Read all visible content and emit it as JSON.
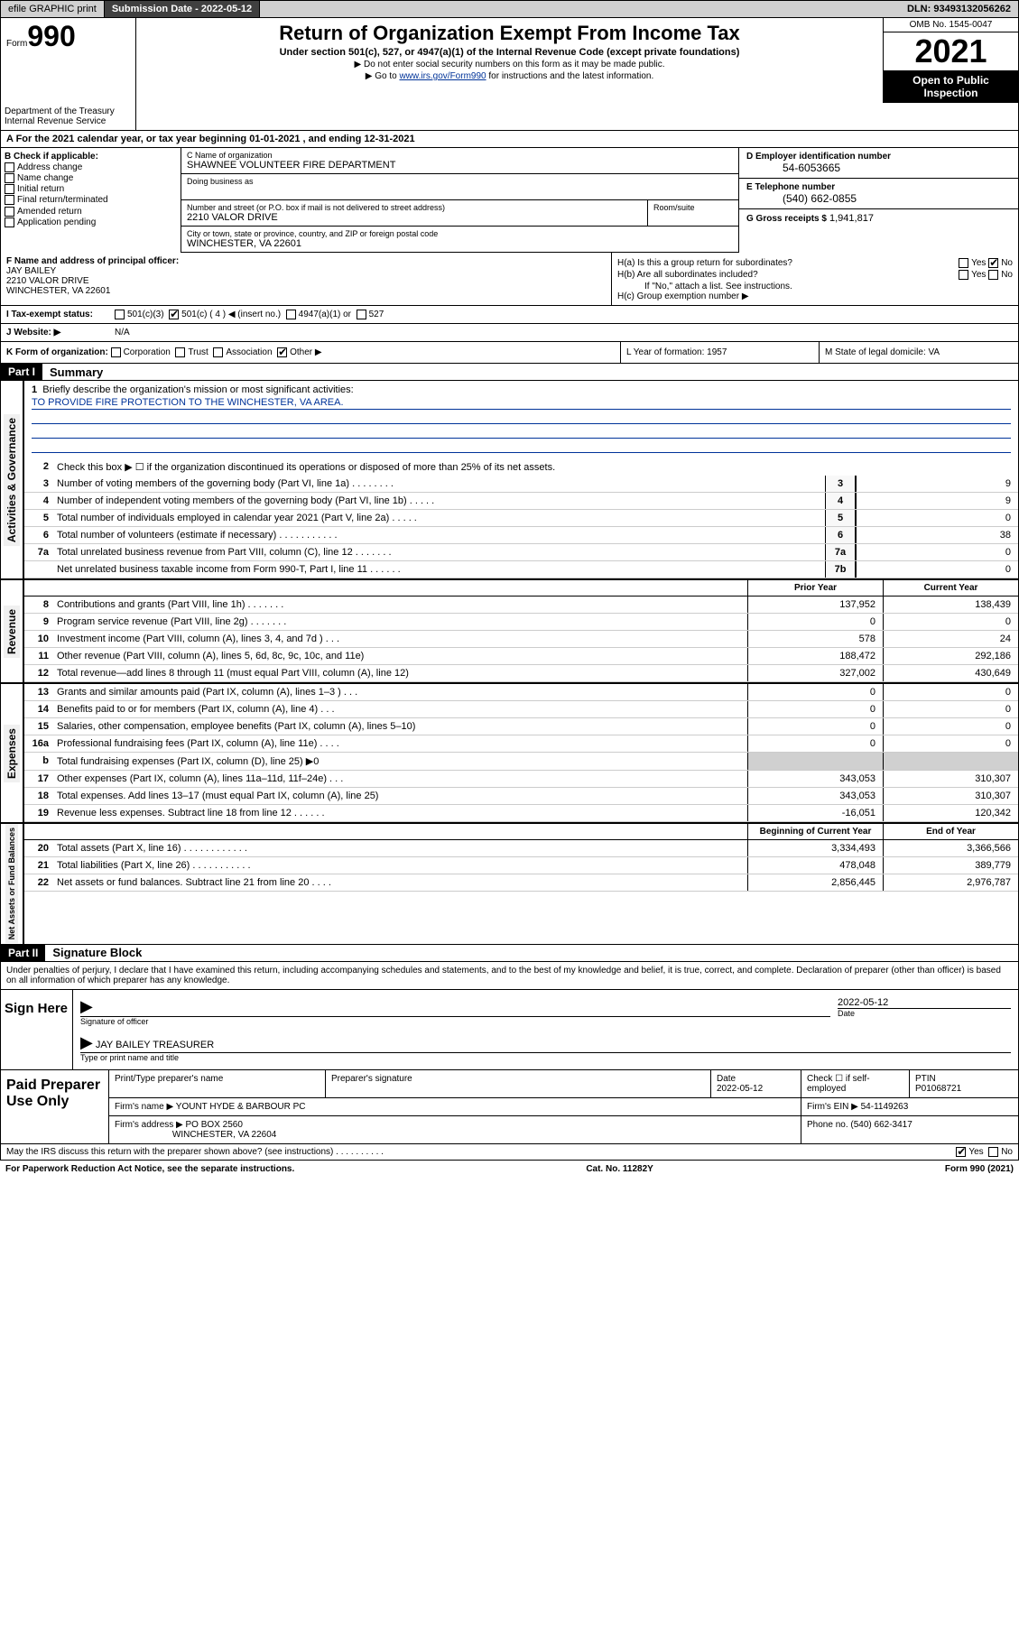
{
  "topbar": {
    "efile": "efile GRAPHIC print",
    "submission_label": "Submission Date - 2022-05-12",
    "dln_label": "DLN: 93493132056262"
  },
  "header": {
    "form_word": "Form",
    "form_number": "990",
    "title": "Return of Organization Exempt From Income Tax",
    "subtitle": "Under section 501(c), 527, or 4947(a)(1) of the Internal Revenue Code (except private foundations)",
    "note1": "▶ Do not enter social security numbers on this form as it may be made public.",
    "note2_prefix": "▶ Go to ",
    "note2_link": "www.irs.gov/Form990",
    "note2_suffix": " for instructions and the latest information.",
    "omb": "OMB No. 1545-0047",
    "year": "2021",
    "open": "Open to Public Inspection",
    "dept": "Department of the Treasury\nInternal Revenue Service"
  },
  "period": {
    "line": "A For the 2021 calendar year, or tax year beginning 01-01-2021   , and ending 12-31-2021"
  },
  "section_b": {
    "heading": "B Check if applicable:",
    "items": [
      "Address change",
      "Name change",
      "Initial return",
      "Final return/terminated",
      "Amended return",
      "Application pending"
    ]
  },
  "section_c": {
    "name_label": "C Name of organization",
    "name": "SHAWNEE VOLUNTEER FIRE DEPARTMENT",
    "dba_label": "Doing business as",
    "addr_label": "Number and street (or P.O. box if mail is not delivered to street address)",
    "addr": "2210 VALOR DRIVE",
    "room_label": "Room/suite",
    "city_label": "City or town, state or province, country, and ZIP or foreign postal code",
    "city": "WINCHESTER, VA  22601"
  },
  "section_de": {
    "d_label": "D Employer identification number",
    "d_val": "54-6053665",
    "e_label": "E Telephone number",
    "e_val": "(540) 662-0855",
    "g_label": "G Gross receipts $",
    "g_val": "1,941,817"
  },
  "section_f": {
    "label": "F  Name and address of principal officer:",
    "name": "JAY BAILEY",
    "addr": "2210 VALOR DRIVE",
    "city": "WINCHESTER, VA  22601"
  },
  "section_h": {
    "ha_label": "H(a)  Is this a group return for subordinates?",
    "ha_yes": "Yes",
    "ha_no": "No",
    "hb_label": "H(b)  Are all subordinates included?",
    "hb_yes": "Yes",
    "hb_no": "No",
    "hb_note": "If \"No,\" attach a list. See instructions.",
    "hc_label": "H(c)  Group exemption number ▶"
  },
  "section_i": {
    "label": "I   Tax-exempt status:",
    "opt1": "501(c)(3)",
    "opt2": "501(c) ( 4 ) ◀ (insert no.)",
    "opt3": "4947(a)(1) or",
    "opt4": "527"
  },
  "section_j": {
    "label": "J   Website: ▶",
    "val": "N/A"
  },
  "section_k": {
    "label": "K Form of organization:",
    "opts": [
      "Corporation",
      "Trust",
      "Association",
      "Other ▶"
    ],
    "l_label": "L Year of formation: 1957",
    "m_label": "M State of legal domicile: VA"
  },
  "part1": {
    "header": "Part I",
    "title": "Summary",
    "line1_label": "Briefly describe the organization's mission or most significant activities:",
    "line1_val": "TO PROVIDE FIRE PROTECTION TO THE WINCHESTER, VA AREA.",
    "line2": "Check this box ▶ ☐  if the organization discontinued its operations or disposed of more than 25% of its net assets.",
    "lines_gov": [
      {
        "n": "3",
        "desc": "Number of voting members of the governing body (Part VI, line 1a)  .    .    .    .    .    .    .    .",
        "box": "3",
        "v": "9"
      },
      {
        "n": "4",
        "desc": "Number of independent voting members of the governing body (Part VI, line 1b)  .    .    .    .    .",
        "box": "4",
        "v": "9"
      },
      {
        "n": "5",
        "desc": "Total number of individuals employed in calendar year 2021 (Part V, line 2a)  .    .    .    .    .",
        "box": "5",
        "v": "0"
      },
      {
        "n": "6",
        "desc": "Total number of volunteers (estimate if necessary)  .    .    .    .    .    .    .    .    .    .    .",
        "box": "6",
        "v": "38"
      },
      {
        "n": "7a",
        "desc": "Total unrelated business revenue from Part VIII, column (C), line 12  .    .    .    .    .    .    .",
        "box": "7a",
        "v": "0"
      },
      {
        "n": "",
        "desc": "Net unrelated business taxable income from Form 990-T, Part I, line 11  .    .    .    .    .    .",
        "box": "7b",
        "v": "0"
      }
    ],
    "col_prior": "Prior Year",
    "col_current": "Current Year",
    "lines_rev": [
      {
        "n": "8",
        "desc": "Contributions and grants (Part VIII, line 1h)  .    .    .    .    .    .    .",
        "p": "137,952",
        "c": "138,439"
      },
      {
        "n": "9",
        "desc": "Program service revenue (Part VIII, line 2g)  .    .    .    .    .    .    .",
        "p": "0",
        "c": "0"
      },
      {
        "n": "10",
        "desc": "Investment income (Part VIII, column (A), lines 3, 4, and 7d )  .    .    .",
        "p": "578",
        "c": "24"
      },
      {
        "n": "11",
        "desc": "Other revenue (Part VIII, column (A), lines 5, 6d, 8c, 9c, 10c, and 11e)",
        "p": "188,472",
        "c": "292,186"
      },
      {
        "n": "12",
        "desc": "Total revenue—add lines 8 through 11 (must equal Part VIII, column (A), line 12)",
        "p": "327,002",
        "c": "430,649"
      }
    ],
    "lines_exp": [
      {
        "n": "13",
        "desc": "Grants and similar amounts paid (Part IX, column (A), lines 1–3 )  .    .    .",
        "p": "0",
        "c": "0"
      },
      {
        "n": "14",
        "desc": "Benefits paid to or for members (Part IX, column (A), line 4)  .    .    .",
        "p": "0",
        "c": "0"
      },
      {
        "n": "15",
        "desc": "Salaries, other compensation, employee benefits (Part IX, column (A), lines 5–10)",
        "p": "0",
        "c": "0"
      },
      {
        "n": "16a",
        "desc": "Professional fundraising fees (Part IX, column (A), line 11e)  .    .    .    .",
        "p": "0",
        "c": "0"
      },
      {
        "n": "b",
        "desc": "Total fundraising expenses (Part IX, column (D), line 25) ▶0",
        "p": "",
        "c": "",
        "shaded": true
      },
      {
        "n": "17",
        "desc": "Other expenses (Part IX, column (A), lines 11a–11d, 11f–24e)  .    .    .",
        "p": "343,053",
        "c": "310,307"
      },
      {
        "n": "18",
        "desc": "Total expenses. Add lines 13–17 (must equal Part IX, column (A), line 25)",
        "p": "343,053",
        "c": "310,307"
      },
      {
        "n": "19",
        "desc": "Revenue less expenses. Subtract line 18 from line 12  .    .    .    .    .    .",
        "p": "-16,051",
        "c": "120,342"
      }
    ],
    "col_begin": "Beginning of Current Year",
    "col_end": "End of Year",
    "lines_bal": [
      {
        "n": "20",
        "desc": "Total assets (Part X, line 16)  .    .    .    .    .    .    .    .    .    .    .    .",
        "p": "3,334,493",
        "c": "3,366,566"
      },
      {
        "n": "21",
        "desc": "Total liabilities (Part X, line 26)  .    .    .    .    .    .    .    .    .    .    .",
        "p": "478,048",
        "c": "389,779"
      },
      {
        "n": "22",
        "desc": "Net assets or fund balances. Subtract line 21 from line 20  .    .    .    .",
        "p": "2,856,445",
        "c": "2,976,787"
      }
    ],
    "tab_gov": "Activities & Governance",
    "tab_rev": "Revenue",
    "tab_exp": "Expenses",
    "tab_bal": "Net Assets or Fund Balances"
  },
  "part2": {
    "header": "Part II",
    "title": "Signature Block",
    "declaration": "Under penalties of perjury, I declare that I have examined this return, including accompanying schedules and statements, and to the best of my knowledge and belief, it is true, correct, and complete. Declaration of preparer (other than officer) is based on all information of which preparer has any knowledge.",
    "sign_here": "Sign Here",
    "sig_officer": "Signature of officer",
    "sig_date": "2022-05-12",
    "date_label": "Date",
    "name_title": "JAY BAILEY TREASURER",
    "type_label": "Type or print name and title",
    "paid_prep": "Paid Preparer Use Only",
    "prep_headers": [
      "Print/Type preparer's name",
      "Preparer's signature",
      "Date",
      "",
      "PTIN"
    ],
    "prep_date": "2022-05-12",
    "prep_check": "Check ☐ if self-employed",
    "prep_ptin": "P01068721",
    "firm_name_label": "Firm's name    ▶",
    "firm_name": "YOUNT HYDE & BARBOUR PC",
    "firm_ein_label": "Firm's EIN ▶",
    "firm_ein": "54-1149263",
    "firm_addr_label": "Firm's address ▶",
    "firm_addr": "PO BOX 2560",
    "firm_city": "WINCHESTER, VA  22604",
    "phone_label": "Phone no.",
    "phone": "(540) 662-3417"
  },
  "footer": {
    "discuss": "May the IRS discuss this return with the preparer shown above? (see instructions)  .    .    .    .    .    .    .    .    .    .",
    "yes": "Yes",
    "no": "No",
    "paperwork": "For Paperwork Reduction Act Notice, see the separate instructions.",
    "cat": "Cat. No. 11282Y",
    "form": "Form 990 (2021)"
  }
}
